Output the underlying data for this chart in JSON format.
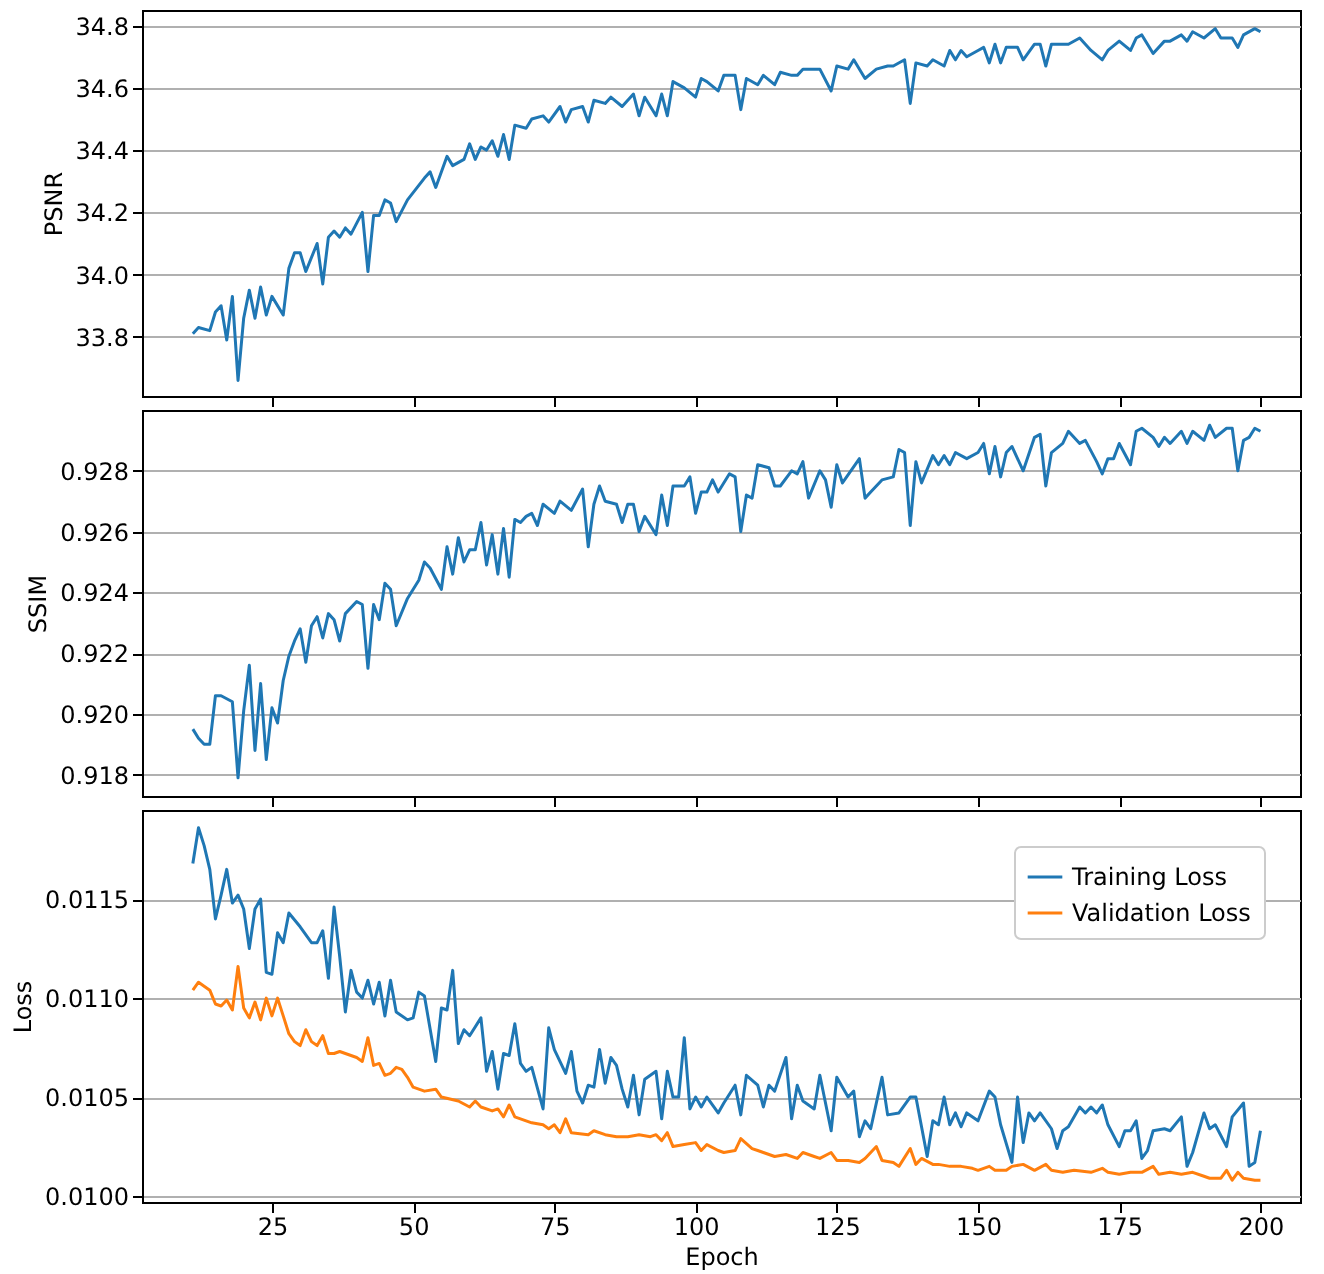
{
  "chart_data": [
    {
      "type": "line",
      "ylabel": "PSNR",
      "xlim": [
        2,
        207
      ],
      "xticks": [
        25,
        50,
        75,
        100,
        125,
        150,
        175,
        200
      ],
      "ylim": [
        33.61,
        34.85
      ],
      "yticks": [
        {
          "value": 33.8,
          "label": "33.8"
        },
        {
          "value": 34.0,
          "label": "34.0"
        },
        {
          "value": 34.2,
          "label": "34.2"
        },
        {
          "value": 34.4,
          "label": "34.4"
        },
        {
          "value": 34.6,
          "label": "34.6"
        },
        {
          "value": 34.8,
          "label": "34.8"
        }
      ],
      "grid": "y",
      "tick_labels": "y",
      "marker": "none",
      "line_style": "solid",
      "series": [
        {
          "color": "#1f77b4",
          "x": [
            11,
            12,
            14,
            15,
            16,
            17,
            18,
            19,
            20,
            21,
            22,
            23,
            24,
            25,
            27,
            28,
            29,
            30,
            31,
            33,
            34,
            35,
            36,
            37,
            38,
            39,
            41,
            42,
            43,
            44,
            45,
            46,
            47,
            49,
            52,
            53,
            54,
            56,
            57,
            59,
            60,
            61,
            62,
            63,
            64,
            65,
            66,
            67,
            68,
            70,
            71,
            73,
            74,
            76,
            77,
            78,
            80,
            81,
            82,
            84,
            85,
            87,
            89,
            90,
            91,
            93,
            94,
            95,
            96,
            98,
            100,
            101,
            102,
            104,
            105,
            107,
            108,
            109,
            111,
            112,
            114,
            115,
            117,
            118,
            119,
            121,
            122,
            124,
            125,
            127,
            128,
            130,
            132,
            134,
            135,
            137,
            138,
            139,
            141,
            142,
            144,
            145,
            146,
            147,
            148,
            150,
            151,
            152,
            153,
            154,
            155,
            157,
            158,
            160,
            161,
            162,
            163,
            166,
            168,
            170,
            172,
            173,
            175,
            177,
            178,
            179,
            181,
            183,
            184,
            186,
            187,
            188,
            190,
            192,
            193,
            195,
            196,
            197,
            199,
            200
          ],
          "values": [
            33.81,
            33.83,
            33.82,
            33.88,
            33.9,
            33.79,
            33.93,
            33.66,
            33.86,
            33.95,
            33.86,
            33.96,
            33.87,
            33.93,
            33.87,
            34.02,
            34.07,
            34.07,
            34.01,
            34.1,
            33.97,
            34.12,
            34.14,
            34.12,
            34.15,
            34.13,
            34.2,
            34.01,
            34.19,
            34.19,
            34.24,
            34.23,
            34.17,
            34.24,
            34.31,
            34.33,
            34.28,
            34.38,
            34.35,
            34.37,
            34.42,
            34.37,
            34.41,
            34.4,
            34.43,
            34.38,
            34.45,
            34.37,
            34.48,
            34.47,
            34.5,
            34.51,
            34.49,
            34.54,
            34.49,
            34.53,
            34.54,
            34.49,
            34.56,
            34.55,
            34.57,
            34.54,
            34.58,
            34.51,
            34.57,
            34.51,
            34.58,
            34.51,
            34.62,
            34.6,
            34.57,
            34.63,
            34.62,
            34.59,
            34.64,
            34.64,
            34.53,
            34.63,
            34.61,
            34.64,
            34.61,
            34.65,
            34.64,
            34.64,
            34.66,
            34.66,
            34.66,
            34.59,
            34.67,
            34.66,
            34.69,
            34.63,
            34.66,
            34.67,
            34.67,
            34.69,
            34.55,
            34.68,
            34.67,
            34.69,
            34.67,
            34.72,
            34.69,
            34.72,
            34.7,
            34.72,
            34.73,
            34.68,
            34.74,
            34.68,
            34.73,
            34.73,
            34.69,
            34.74,
            34.74,
            34.67,
            34.74,
            34.74,
            34.76,
            34.72,
            34.69,
            34.72,
            34.75,
            34.72,
            34.76,
            34.77,
            34.71,
            34.75,
            34.75,
            34.77,
            34.75,
            34.78,
            34.76,
            34.79,
            34.76,
            34.76,
            34.73,
            34.77,
            34.79,
            34.78
          ]
        }
      ]
    },
    {
      "type": "line",
      "ylabel": "SSIM",
      "xlim": [
        2,
        207
      ],
      "xticks": [
        25,
        50,
        75,
        100,
        125,
        150,
        175,
        200
      ],
      "ylim": [
        0.9173,
        0.93
      ],
      "yticks": [
        {
          "value": 0.918,
          "label": "0.918"
        },
        {
          "value": 0.92,
          "label": "0.920"
        },
        {
          "value": 0.922,
          "label": "0.922"
        },
        {
          "value": 0.924,
          "label": "0.924"
        },
        {
          "value": 0.926,
          "label": "0.926"
        },
        {
          "value": 0.928,
          "label": "0.928"
        }
      ],
      "grid": "y",
      "tick_labels": "y",
      "marker": "none",
      "line_style": "solid",
      "series": [
        {
          "color": "#1f77b4",
          "x": [
            11,
            12,
            13,
            14,
            15,
            16,
            17,
            18,
            19,
            20,
            21,
            22,
            23,
            24,
            25,
            26,
            27,
            28,
            29,
            30,
            31,
            32,
            33,
            34,
            35,
            36,
            37,
            38,
            40,
            41,
            42,
            43,
            44,
            45,
            46,
            47,
            49,
            51,
            52,
            53,
            55,
            56,
            57,
            58,
            59,
            60,
            61,
            62,
            63,
            64,
            65,
            66,
            67,
            68,
            69,
            70,
            71,
            72,
            73,
            75,
            76,
            78,
            80,
            81,
            82,
            83,
            84,
            86,
            87,
            88,
            89,
            90,
            91,
            93,
            94,
            95,
            96,
            98,
            99,
            100,
            101,
            102,
            103,
            104,
            106,
            107,
            108,
            109,
            110,
            111,
            113,
            114,
            115,
            117,
            118,
            119,
            120,
            122,
            123,
            124,
            125,
            126,
            129,
            130,
            131,
            133,
            135,
            136,
            137,
            138,
            139,
            140,
            142,
            143,
            144,
            145,
            146,
            148,
            150,
            151,
            152,
            153,
            154,
            155,
            156,
            158,
            160,
            161,
            162,
            163,
            165,
            166,
            168,
            169,
            171,
            172,
            173,
            174,
            175,
            177,
            178,
            179,
            181,
            182,
            183,
            184,
            186,
            187,
            188,
            190,
            191,
            192,
            194,
            195,
            196,
            197,
            198,
            199,
            200
          ],
          "values": [
            0.9195,
            0.9192,
            0.919,
            0.919,
            0.9206,
            0.9206,
            0.9205,
            0.9204,
            0.9179,
            0.9201,
            0.9216,
            0.9188,
            0.921,
            0.9185,
            0.9202,
            0.9197,
            0.9211,
            0.9219,
            0.9224,
            0.9228,
            0.9217,
            0.9229,
            0.9232,
            0.9225,
            0.9233,
            0.9231,
            0.9224,
            0.9233,
            0.9237,
            0.9236,
            0.9215,
            0.9236,
            0.9231,
            0.9243,
            0.9241,
            0.9229,
            0.9238,
            0.9244,
            0.925,
            0.9248,
            0.9241,
            0.9255,
            0.9246,
            0.9258,
            0.925,
            0.9254,
            0.9254,
            0.9263,
            0.9249,
            0.9259,
            0.9246,
            0.9261,
            0.9245,
            0.9264,
            0.9263,
            0.9265,
            0.9266,
            0.9262,
            0.9269,
            0.9266,
            0.927,
            0.9267,
            0.9274,
            0.9255,
            0.9269,
            0.9275,
            0.927,
            0.9269,
            0.9263,
            0.9269,
            0.9269,
            0.926,
            0.9265,
            0.9259,
            0.9272,
            0.9262,
            0.9275,
            0.9275,
            0.9278,
            0.9266,
            0.9273,
            0.9273,
            0.9277,
            0.9273,
            0.9279,
            0.9278,
            0.926,
            0.9272,
            0.9271,
            0.9282,
            0.9281,
            0.9275,
            0.9275,
            0.928,
            0.9279,
            0.9283,
            0.9271,
            0.928,
            0.9277,
            0.9268,
            0.9282,
            0.9276,
            0.9284,
            0.9271,
            0.9273,
            0.9277,
            0.9278,
            0.9287,
            0.9286,
            0.9262,
            0.9283,
            0.9276,
            0.9285,
            0.9282,
            0.9285,
            0.9282,
            0.9286,
            0.9284,
            0.9286,
            0.9289,
            0.9279,
            0.9288,
            0.9278,
            0.9286,
            0.9288,
            0.928,
            0.9291,
            0.9292,
            0.9275,
            0.9286,
            0.9289,
            0.9293,
            0.9289,
            0.929,
            0.9283,
            0.9279,
            0.9284,
            0.9284,
            0.9289,
            0.9282,
            0.9293,
            0.9294,
            0.9291,
            0.9288,
            0.9291,
            0.9289,
            0.9293,
            0.9289,
            0.9293,
            0.929,
            0.9295,
            0.9291,
            0.9294,
            0.9294,
            0.928,
            0.929,
            0.9291,
            0.9294,
            0.9293
          ]
        }
      ]
    },
    {
      "type": "line",
      "xlabel": "Epoch",
      "ylabel": "Loss",
      "xlim": [
        2,
        207
      ],
      "xticks": [
        25,
        50,
        75,
        100,
        125,
        150,
        175,
        200
      ],
      "ylim": [
        0.00997,
        0.01195
      ],
      "yticks": [
        {
          "value": 0.01,
          "label": "0.0100"
        },
        {
          "value": 0.0105,
          "label": "0.0105"
        },
        {
          "value": 0.011,
          "label": "0.0110"
        },
        {
          "value": 0.0115,
          "label": "0.0115"
        }
      ],
      "grid": "y",
      "legend": "top right",
      "marker": "none",
      "line_style": "solid",
      "series": [
        {
          "name": "Training Loss",
          "color": "#1f77b4",
          "x": [
            11,
            12,
            13,
            14,
            15,
            16,
            17,
            18,
            19,
            20,
            21,
            22,
            23,
            24,
            25,
            26,
            27,
            28,
            30,
            32,
            33,
            34,
            35,
            36,
            37,
            38,
            39,
            40,
            41,
            42,
            43,
            44,
            45,
            46,
            47,
            49,
            50,
            51,
            52,
            54,
            55,
            56,
            57,
            58,
            59,
            60,
            62,
            63,
            64,
            65,
            66,
            67,
            68,
            69,
            70,
            71,
            73,
            74,
            75,
            77,
            78,
            79,
            80,
            81,
            82,
            83,
            84,
            85,
            86,
            87,
            88,
            89,
            90,
            91,
            93,
            94,
            95,
            96,
            97,
            98,
            99,
            100,
            101,
            102,
            104,
            105,
            107,
            108,
            109,
            111,
            112,
            113,
            114,
            116,
            117,
            118,
            119,
            121,
            122,
            124,
            125,
            127,
            128,
            129,
            130,
            131,
            133,
            134,
            136,
            138,
            139,
            141,
            142,
            143,
            144,
            145,
            146,
            147,
            148,
            150,
            152,
            153,
            154,
            156,
            157,
            158,
            159,
            160,
            161,
            163,
            164,
            165,
            166,
            168,
            169,
            170,
            171,
            172,
            173,
            175,
            176,
            177,
            178,
            179,
            180,
            181,
            183,
            184,
            186,
            187,
            188,
            190,
            191,
            192,
            194,
            195,
            197,
            198,
            199,
            200
          ],
          "values": [
            0.01168,
            0.01186,
            0.01177,
            0.01165,
            0.0114,
            0.01152,
            0.01165,
            0.01148,
            0.01152,
            0.01145,
            0.01125,
            0.01145,
            0.0115,
            0.01113,
            0.01112,
            0.01133,
            0.01128,
            0.01143,
            0.01136,
            0.01128,
            0.01128,
            0.01134,
            0.0111,
            0.01146,
            0.01121,
            0.01093,
            0.01114,
            0.01103,
            0.011,
            0.01109,
            0.01097,
            0.01108,
            0.01091,
            0.01109,
            0.01093,
            0.01089,
            0.0109,
            0.01103,
            0.01101,
            0.01068,
            0.01095,
            0.01094,
            0.01114,
            0.01077,
            0.01084,
            0.01081,
            0.0109,
            0.01063,
            0.01073,
            0.01054,
            0.01072,
            0.01071,
            0.01087,
            0.01067,
            0.01063,
            0.01065,
            0.01044,
            0.01085,
            0.01074,
            0.01062,
            0.01073,
            0.01053,
            0.01047,
            0.01056,
            0.01055,
            0.01074,
            0.01057,
            0.0107,
            0.01066,
            0.01054,
            0.01045,
            0.01061,
            0.01041,
            0.01059,
            0.01063,
            0.01039,
            0.01063,
            0.0105,
            0.0105,
            0.0108,
            0.01044,
            0.0105,
            0.01045,
            0.0105,
            0.01042,
            0.01047,
            0.01056,
            0.01041,
            0.01061,
            0.01056,
            0.01045,
            0.01056,
            0.01053,
            0.0107,
            0.01039,
            0.01056,
            0.01048,
            0.01044,
            0.01061,
            0.01033,
            0.0106,
            0.0105,
            0.01053,
            0.0103,
            0.01038,
            0.01034,
            0.0106,
            0.01041,
            0.01042,
            0.0105,
            0.0105,
            0.0102,
            0.01038,
            0.01036,
            0.0105,
            0.01036,
            0.01042,
            0.01035,
            0.01042,
            0.01038,
            0.01053,
            0.0105,
            0.01036,
            0.01017,
            0.0105,
            0.01027,
            0.01042,
            0.01038,
            0.01042,
            0.01034,
            0.01024,
            0.01033,
            0.01035,
            0.01045,
            0.01042,
            0.01045,
            0.01042,
            0.01046,
            0.01036,
            0.01025,
            0.01033,
            0.01033,
            0.01038,
            0.01019,
            0.01023,
            0.01033,
            0.01034,
            0.01033,
            0.0104,
            0.01015,
            0.01022,
            0.01042,
            0.01034,
            0.01036,
            0.01025,
            0.0104,
            0.01047,
            0.01015,
            0.01017,
            0.01033
          ]
        },
        {
          "name": "Validation Loss",
          "color": "#ff7f0e",
          "x": [
            11,
            12,
            14,
            15,
            16,
            17,
            18,
            19,
            20,
            21,
            22,
            23,
            24,
            25,
            26,
            27,
            28,
            29,
            30,
            31,
            32,
            33,
            34,
            35,
            36,
            37,
            40,
            41,
            42,
            43,
            44,
            45,
            46,
            47,
            48,
            49,
            50,
            52,
            54,
            55,
            58,
            60,
            61,
            62,
            64,
            65,
            66,
            67,
            68,
            71,
            73,
            74,
            75,
            76,
            77,
            78,
            81,
            82,
            84,
            86,
            88,
            90,
            92,
            93,
            94,
            95,
            96,
            98,
            100,
            101,
            102,
            104,
            105,
            107,
            108,
            110,
            111,
            112,
            114,
            116,
            118,
            119,
            121,
            122,
            124,
            125,
            127,
            129,
            130,
            132,
            133,
            135,
            136,
            138,
            139,
            140,
            142,
            143,
            145,
            147,
            149,
            150,
            152,
            153,
            155,
            156,
            158,
            160,
            162,
            163,
            165,
            167,
            170,
            172,
            173,
            175,
            177,
            179,
            181,
            182,
            184,
            186,
            188,
            190,
            191,
            193,
            194,
            195,
            196,
            197,
            199,
            200
          ],
          "values": [
            0.01104,
            0.01108,
            0.01104,
            0.01097,
            0.01096,
            0.01099,
            0.01094,
            0.01116,
            0.01095,
            0.0109,
            0.01098,
            0.01089,
            0.011,
            0.01091,
            0.011,
            0.01091,
            0.01082,
            0.01078,
            0.01076,
            0.01084,
            0.01078,
            0.01076,
            0.01081,
            0.01072,
            0.01072,
            0.01073,
            0.0107,
            0.01068,
            0.0108,
            0.01066,
            0.01067,
            0.01061,
            0.01062,
            0.01065,
            0.01064,
            0.0106,
            0.01055,
            0.01053,
            0.01054,
            0.0105,
            0.01048,
            0.01045,
            0.01048,
            0.01045,
            0.01043,
            0.01044,
            0.0104,
            0.01046,
            0.0104,
            0.01037,
            0.01036,
            0.01034,
            0.01036,
            0.01032,
            0.01039,
            0.01032,
            0.01031,
            0.01033,
            0.01031,
            0.0103,
            0.0103,
            0.01031,
            0.0103,
            0.01031,
            0.01028,
            0.01032,
            0.01025,
            0.01026,
            0.01027,
            0.01023,
            0.01026,
            0.01023,
            0.01022,
            0.01023,
            0.01029,
            0.01024,
            0.01023,
            0.01022,
            0.0102,
            0.01021,
            0.01019,
            0.01022,
            0.0102,
            0.01019,
            0.01022,
            0.01018,
            0.01018,
            0.01017,
            0.01019,
            0.01025,
            0.01018,
            0.01017,
            0.01015,
            0.01024,
            0.01016,
            0.01019,
            0.01016,
            0.01016,
            0.01015,
            0.01015,
            0.01014,
            0.01013,
            0.01015,
            0.01013,
            0.01013,
            0.01015,
            0.01016,
            0.01013,
            0.01016,
            0.01013,
            0.01012,
            0.01013,
            0.01012,
            0.01014,
            0.01012,
            0.01011,
            0.01012,
            0.01012,
            0.01015,
            0.01011,
            0.01012,
            0.01011,
            0.01012,
            0.0101,
            0.01009,
            0.01009,
            0.01013,
            0.01008,
            0.01012,
            0.01009,
            0.01008,
            0.01008
          ]
        }
      ]
    }
  ]
}
